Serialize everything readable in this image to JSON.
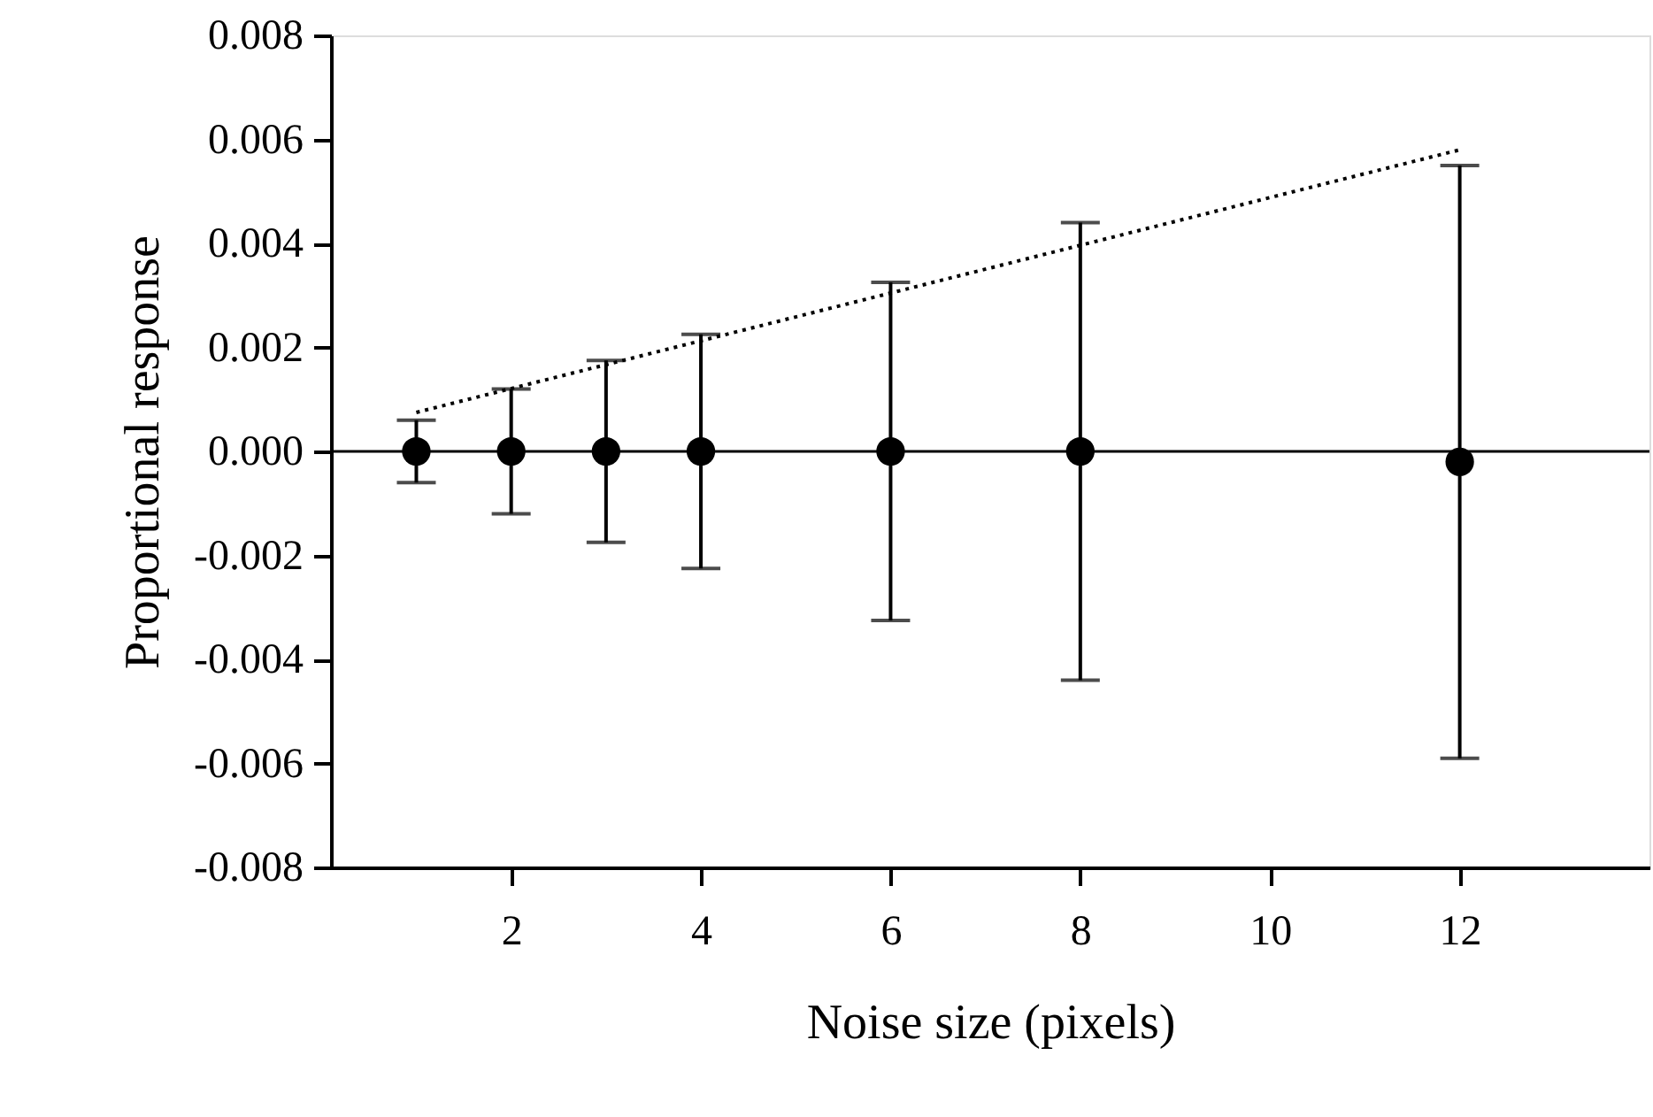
{
  "chart_data": {
    "type": "scatter",
    "xlabel": "Noise size (pixels)",
    "ylabel": "Proportional response",
    "x": [
      1,
      2,
      3,
      4,
      6,
      8,
      12
    ],
    "series": [
      {
        "color": "#000000",
        "marker": "circle",
        "values": [
          0,
          0,
          0,
          0,
          0,
          0,
          -0.0002
        ],
        "errors": [
          0.0006,
          0.0012,
          0.00175,
          0.00225,
          0.00325,
          0.0044,
          0.0057
        ]
      },
      {
        "type": "line",
        "color": "#000000",
        "line_style": "dotted",
        "x": [
          1,
          12
        ],
        "values": [
          0.00075,
          0.0058
        ]
      }
    ],
    "ref_lines": [
      {
        "axis": "y",
        "value": 0,
        "color": "#000000"
      }
    ],
    "xlim": [
      0.1,
      14
    ],
    "xticks": [
      2,
      4,
      6,
      8,
      10,
      12
    ],
    "ylim": [
      -0.008,
      0.008
    ],
    "yticks": [
      {
        "value": -0.008,
        "label": "-0.008"
      },
      {
        "value": -0.006,
        "label": "-0.006"
      },
      {
        "value": -0.004,
        "label": "-0.004"
      },
      {
        "value": -0.002,
        "label": "-0.002"
      },
      {
        "value": 0,
        "label": "0.000"
      },
      {
        "value": 0.002,
        "label": "0.002"
      },
      {
        "value": 0.004,
        "label": "0.004"
      },
      {
        "value": 0.006,
        "label": "0.006"
      },
      {
        "value": 0.008,
        "label": "0.008"
      }
    ],
    "grid": false
  }
}
